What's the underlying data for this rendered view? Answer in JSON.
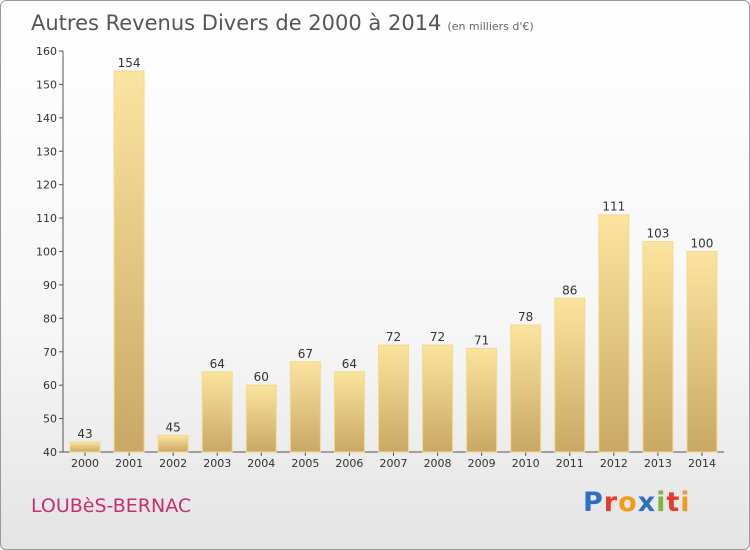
{
  "page": {
    "title": "Autres Revenus Divers de 2000 à 2014",
    "subtitle": "(en milliers d'€)",
    "commune": "LOUBèS-BERNAC",
    "logo": {
      "letters": [
        "P",
        "r",
        "o",
        "x",
        "i",
        "t",
        "i"
      ],
      "colors": [
        "#2f6fc0",
        "#e53b2c",
        "#f29a1d",
        "#2f6fc0",
        "#7cb63b",
        "#e53b2c",
        "#f29a1d"
      ]
    }
  },
  "chart_data": {
    "type": "bar",
    "title": "Autres Revenus Divers de 2000 à 2014",
    "subtitle": "(en milliers d'€)",
    "xlabel": "",
    "ylabel": "",
    "categories": [
      "2000",
      "2001",
      "2002",
      "2003",
      "2004",
      "2005",
      "2006",
      "2007",
      "2008",
      "2009",
      "2010",
      "2011",
      "2012",
      "2013",
      "2014"
    ],
    "values": [
      43,
      154,
      45,
      64,
      60,
      67,
      64,
      72,
      72,
      71,
      78,
      86,
      111,
      103,
      100
    ],
    "ylim": [
      40,
      160
    ],
    "yticks": [
      40,
      50,
      60,
      70,
      80,
      90,
      100,
      110,
      120,
      130,
      140,
      150,
      160
    ],
    "grid": false,
    "bar_color": "#e8c97e",
    "bar_color_light": "#fbe49f",
    "bar_color_dark": "#c9a865"
  }
}
